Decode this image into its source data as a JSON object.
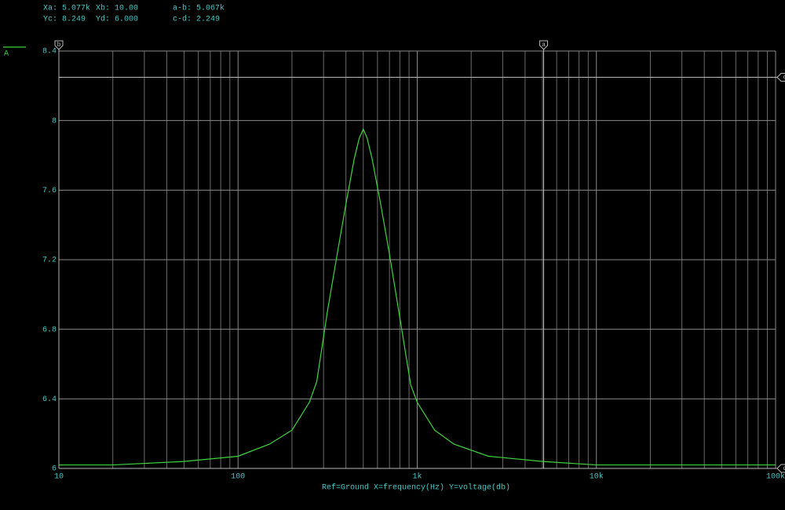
{
  "chart_data": {
    "type": "line",
    "xlabel": "Ref=Ground  X=frequency(Hz) Y=voltage(db)",
    "xscale": "log",
    "grid": true,
    "xlim": [
      10,
      100000
    ],
    "xticks": [
      10,
      100,
      {
        "value": 1000,
        "label": "1k"
      },
      {
        "value": 10000,
        "label": "10k"
      },
      {
        "value": 100000,
        "label": "100k"
      }
    ],
    "ylim": [
      6,
      8.4
    ],
    "yticks": [
      6,
      6.4,
      6.8,
      7.2,
      7.6,
      8,
      8.4
    ],
    "x": [
      10,
      20,
      50,
      100,
      150,
      200,
      250,
      275,
      315,
      360,
      400,
      445,
      475,
      500,
      525,
      560,
      625,
      695,
      790,
      920,
      1000,
      1250,
      1600,
      2500,
      5000,
      10000,
      100000
    ],
    "series": [
      {
        "name": "A",
        "color": "#3ed43e",
        "values": [
          6.02,
          6.02,
          6.04,
          6.07,
          6.14,
          6.22,
          6.38,
          6.5,
          6.9,
          7.25,
          7.52,
          7.78,
          7.9,
          7.95,
          7.9,
          7.78,
          7.52,
          7.25,
          6.9,
          6.48,
          6.38,
          6.22,
          6.14,
          6.07,
          6.04,
          6.02,
          6.02
        ]
      }
    ],
    "cursors": [
      {
        "name": "a",
        "axis": "x",
        "value": 5077,
        "label": "Xa: 5.077k"
      },
      {
        "name": "b",
        "axis": "x",
        "value": 10,
        "label": "Xb: 10.00"
      },
      {
        "name": "c",
        "axis": "y",
        "value": 8.249,
        "label": "Yc: 8.249"
      },
      {
        "name": "d",
        "axis": "y",
        "value": 6,
        "label": "Yd: 6.000"
      }
    ],
    "cursor_deltas": [
      {
        "value": 5067,
        "label": "a-b: 5.067k"
      },
      {
        "value": 2.249,
        "label": "c-d: 2.249"
      }
    ]
  }
}
